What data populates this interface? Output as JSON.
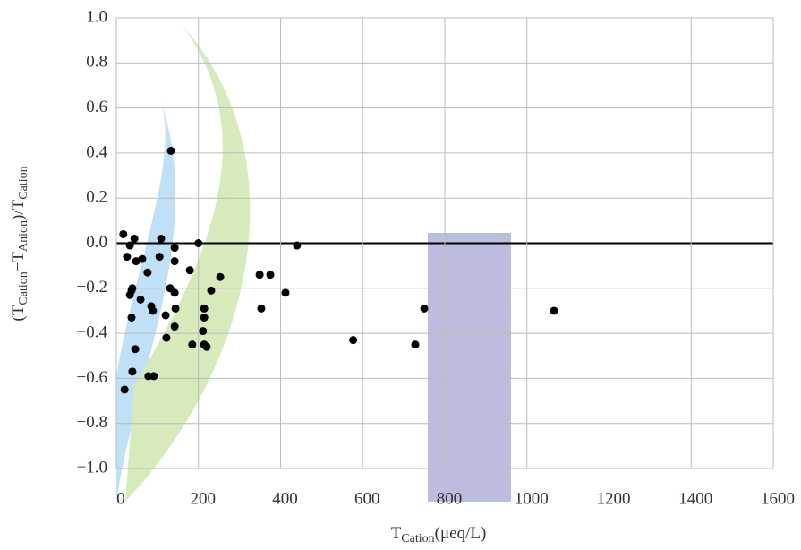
{
  "chart_data": {
    "type": "scatter",
    "x_label": [
      {
        "text": "T",
        "sub": false
      },
      {
        "text": "Cation",
        "sub": true
      },
      {
        "text": "(μeq/L)",
        "sub": false
      }
    ],
    "y_label": [
      {
        "text": "(T",
        "sub": false
      },
      {
        "text": "Cation",
        "sub": true
      },
      {
        "text": "−T",
        "sub": false
      },
      {
        "text": "Anion",
        "sub": true
      },
      {
        "text": ")/T",
        "sub": false
      },
      {
        "text": "Cation",
        "sub": true
      }
    ],
    "xlim": [
      0,
      1600
    ],
    "xticks": [
      0,
      200,
      400,
      600,
      800,
      1000,
      1200,
      1400,
      1600
    ],
    "ylim": [
      -1,
      1
    ],
    "yticks": [
      {
        "value": -1,
        "label": "−1.0"
      },
      {
        "value": -0.8,
        "label": "−0.8"
      },
      {
        "value": -0.6,
        "label": "−0.6"
      },
      {
        "value": -0.4,
        "label": "−0.4"
      },
      {
        "value": -0.2,
        "label": "−0.2"
      },
      {
        "value": 0,
        "label": "0.0"
      },
      {
        "value": 0.2,
        "label": "0.2"
      },
      {
        "value": 0.4,
        "label": "0.4"
      },
      {
        "value": 0.6,
        "label": "0.6"
      },
      {
        "value": 0.8,
        "label": "0.8"
      },
      {
        "value": 1,
        "label": "1.0"
      }
    ],
    "grid": true,
    "color": "#000000",
    "x": [
      17,
      44,
      33,
      26,
      48,
      63,
      33,
      37,
      39,
      37,
      46,
      39,
      20,
      59,
      78,
      91,
      85,
      89,
      76,
      109,
      105,
      142,
      133,
      131,
      142,
      142,
      120,
      122,
      142,
      144,
      200,
      179,
      185,
      214,
      214,
      211,
      214,
      220,
      231,
      253,
      349,
      375,
      353,
      412,
      440,
      577,
      728,
      750,
      1066
    ],
    "values": [
      0.04,
      0.02,
      -0.01,
      -0.06,
      -0.08,
      -0.07,
      -0.23,
      -0.21,
      -0.2,
      -0.33,
      -0.47,
      -0.57,
      -0.65,
      -0.25,
      -0.59,
      -0.59,
      -0.28,
      -0.3,
      -0.13,
      0.02,
      -0.06,
      -0.02,
      0.41,
      -0.2,
      -0.22,
      -0.08,
      -0.32,
      -0.42,
      -0.37,
      -0.29,
      0,
      -0.12,
      -0.45,
      -0.29,
      -0.33,
      -0.39,
      -0.45,
      -0.46,
      -0.21,
      -0.15,
      -0.14,
      -0.14,
      -0.29,
      -0.22,
      -0.01,
      -0.43,
      -0.45,
      -0.29,
      -0.3
    ]
  }
}
